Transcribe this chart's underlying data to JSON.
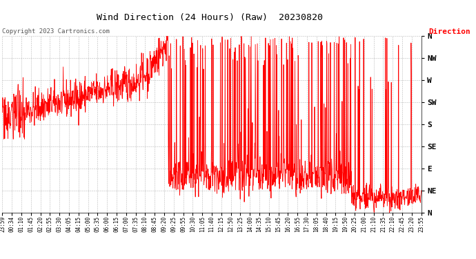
{
  "title": "Wind Direction (24 Hours) (Raw)  20230820",
  "copyright": "Copyright 2023 Cartronics.com",
  "legend_label": "Direction",
  "legend_color": "#ff0000",
  "line_color": "#ff0000",
  "bg_color": "#ffffff",
  "grid_color": "#888888",
  "title_color": "#000000",
  "copyright_color": "#555555",
  "ytick_labels": [
    "N",
    "NE",
    "E",
    "SE",
    "S",
    "SW",
    "W",
    "NW",
    "N"
  ],
  "ytick_values": [
    0,
    45,
    90,
    135,
    180,
    225,
    270,
    315,
    360
  ],
  "ylim": [
    0,
    360
  ],
  "xtick_labels": [
    "23:59",
    "00:34",
    "01:10",
    "01:45",
    "02:20",
    "02:55",
    "03:30",
    "04:05",
    "04:15",
    "05:00",
    "05:35",
    "06:00",
    "06:15",
    "07:00",
    "07:35",
    "08:10",
    "08:45",
    "09:20",
    "09:25",
    "09:55",
    "10:30",
    "11:05",
    "11:40",
    "12:15",
    "12:50",
    "13:25",
    "14:00",
    "14:35",
    "15:10",
    "15:45",
    "16:20",
    "16:55",
    "17:30",
    "18:05",
    "18:40",
    "19:15",
    "19:50",
    "20:25",
    "21:00",
    "21:10",
    "21:35",
    "22:10",
    "22:45",
    "23:20",
    "23:55"
  ],
  "figsize": [
    6.9,
    3.75
  ],
  "dpi": 100
}
